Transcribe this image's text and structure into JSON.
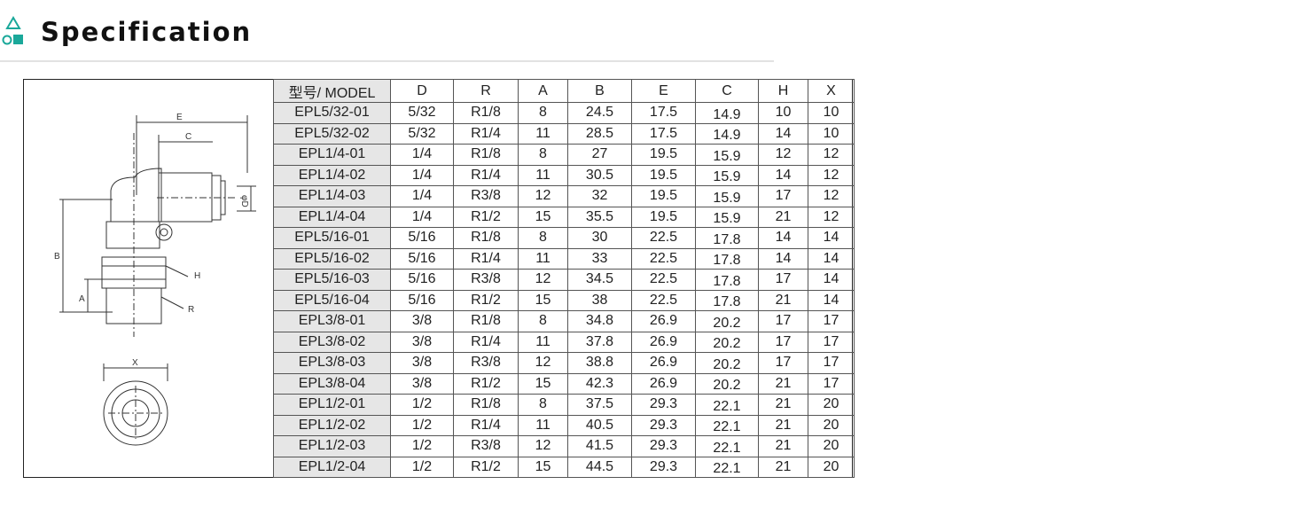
{
  "header": {
    "title": "Specification",
    "icon": "shapes-icon",
    "accent": "#1aa89a"
  },
  "table": {
    "columns": [
      "型号/ MODEL",
      "D",
      "R",
      "A",
      "B",
      "E",
      "C",
      "H",
      "X"
    ],
    "rows": [
      [
        "EPL5/32-01",
        "5/32",
        "R1/8",
        "8",
        "24.5",
        "17.5",
        "14.9",
        "10",
        "10"
      ],
      [
        "EPL5/32-02",
        "5/32",
        "R1/4",
        "11",
        "28.5",
        "17.5",
        "14.9",
        "14",
        "10"
      ],
      [
        "EPL1/4-01",
        "1/4",
        "R1/8",
        "8",
        "27",
        "19.5",
        "15.9",
        "12",
        "12"
      ],
      [
        "EPL1/4-02",
        "1/4",
        "R1/4",
        "11",
        "30.5",
        "19.5",
        "15.9",
        "14",
        "12"
      ],
      [
        "EPL1/4-03",
        "1/4",
        "R3/8",
        "12",
        "32",
        "19.5",
        "15.9",
        "17",
        "12"
      ],
      [
        "EPL1/4-04",
        "1/4",
        "R1/2",
        "15",
        "35.5",
        "19.5",
        "15.9",
        "21",
        "12"
      ],
      [
        "EPL5/16-01",
        "5/16",
        "R1/8",
        "8",
        "30",
        "22.5",
        "17.8",
        "14",
        "14"
      ],
      [
        "EPL5/16-02",
        "5/16",
        "R1/4",
        "11",
        "33",
        "22.5",
        "17.8",
        "14",
        "14"
      ],
      [
        "EPL5/16-03",
        "5/16",
        "R3/8",
        "12",
        "34.5",
        "22.5",
        "17.8",
        "17",
        "14"
      ],
      [
        "EPL5/16-04",
        "5/16",
        "R1/2",
        "15",
        "38",
        "22.5",
        "17.8",
        "21",
        "14"
      ],
      [
        "EPL3/8-01",
        "3/8",
        "R1/8",
        "8",
        "34.8",
        "26.9",
        "20.2",
        "17",
        "17"
      ],
      [
        "EPL3/8-02",
        "3/8",
        "R1/4",
        "11",
        "37.8",
        "26.9",
        "20.2",
        "17",
        "17"
      ],
      [
        "EPL3/8-03",
        "3/8",
        "R3/8",
        "12",
        "38.8",
        "26.9",
        "20.2",
        "17",
        "17"
      ],
      [
        "EPL3/8-04",
        "3/8",
        "R1/2",
        "15",
        "42.3",
        "26.9",
        "20.2",
        "21",
        "17"
      ],
      [
        "EPL1/2-01",
        "1/2",
        "R1/8",
        "8",
        "37.5",
        "29.3",
        "22.1",
        "21",
        "20"
      ],
      [
        "EPL1/2-02",
        "1/2",
        "R1/4",
        "11",
        "40.5",
        "29.3",
        "22.1",
        "21",
        "20"
      ],
      [
        "EPL1/2-03",
        "1/2",
        "R3/8",
        "12",
        "41.5",
        "29.3",
        "22.1",
        "21",
        "20"
      ],
      [
        "EPL1/2-04",
        "1/2",
        "R1/2",
        "15",
        "44.5",
        "29.3",
        "22.1",
        "21",
        "20"
      ]
    ]
  },
  "drawing": {
    "labels": {
      "E": "E",
      "C": "C",
      "D": "φD",
      "B": "B",
      "H": "H",
      "A": "A",
      "R": "R",
      "X": "X"
    }
  }
}
